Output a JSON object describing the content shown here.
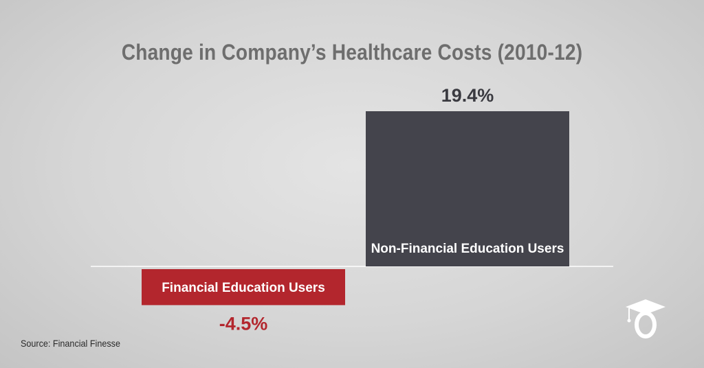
{
  "chart_data": {
    "type": "bar",
    "title": "Change in Company’s Healthcare Costs (2010-12)",
    "categories": [
      "Financial Education Users",
      "Non-Financial Education Users"
    ],
    "values": [
      -4.5,
      19.4
    ],
    "value_labels": [
      "-4.5%",
      "19.4%"
    ],
    "colors": [
      "#b3262d",
      "#44444c"
    ],
    "value_label_colors": [
      "#b3262d",
      "#3a3a40"
    ],
    "unit": "%",
    "xlabel": "",
    "ylabel": "",
    "grid": false,
    "legend": "none"
  },
  "source": "Source: Financial Finesse",
  "logo_icon": "graduation-cap-icon"
}
